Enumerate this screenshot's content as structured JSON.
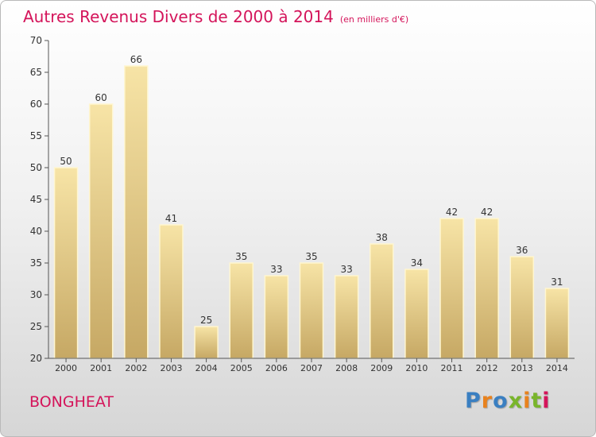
{
  "header": {
    "title": "Autres Revenus Divers de 2000 à 2014",
    "subtitle": "(en milliers d'€)"
  },
  "footer": {
    "city": "BONGHEAT",
    "logo": {
      "text": "Proxiti",
      "colors": [
        "#3a7fc1",
        "#e8821e",
        "#3a7fc1",
        "#79b52b",
        "#e8821e",
        "#79b52b",
        "#d4145a"
      ]
    }
  },
  "colors": {
    "title": "#d4145a",
    "bar_light": "#f6e2a2",
    "bar_dark": "#c8aa66",
    "axis": "#555555"
  },
  "chart_data": {
    "type": "bar",
    "title": "Autres Revenus Divers de 2000 à 2014",
    "subtitle": "(en milliers d'€)",
    "xlabel": "",
    "ylabel": "",
    "categories": [
      "2000",
      "2001",
      "2002",
      "2003",
      "2004",
      "2005",
      "2006",
      "2007",
      "2008",
      "2009",
      "2010",
      "2011",
      "2012",
      "2013",
      "2014"
    ],
    "values": [
      50,
      60,
      66,
      41,
      25,
      35,
      33,
      35,
      33,
      38,
      34,
      42,
      42,
      36,
      31
    ],
    "ylim": [
      20,
      70
    ],
    "yticks": [
      20,
      25,
      30,
      35,
      40,
      45,
      50,
      55,
      60,
      65,
      70
    ],
    "grid": false,
    "legend": "none"
  }
}
